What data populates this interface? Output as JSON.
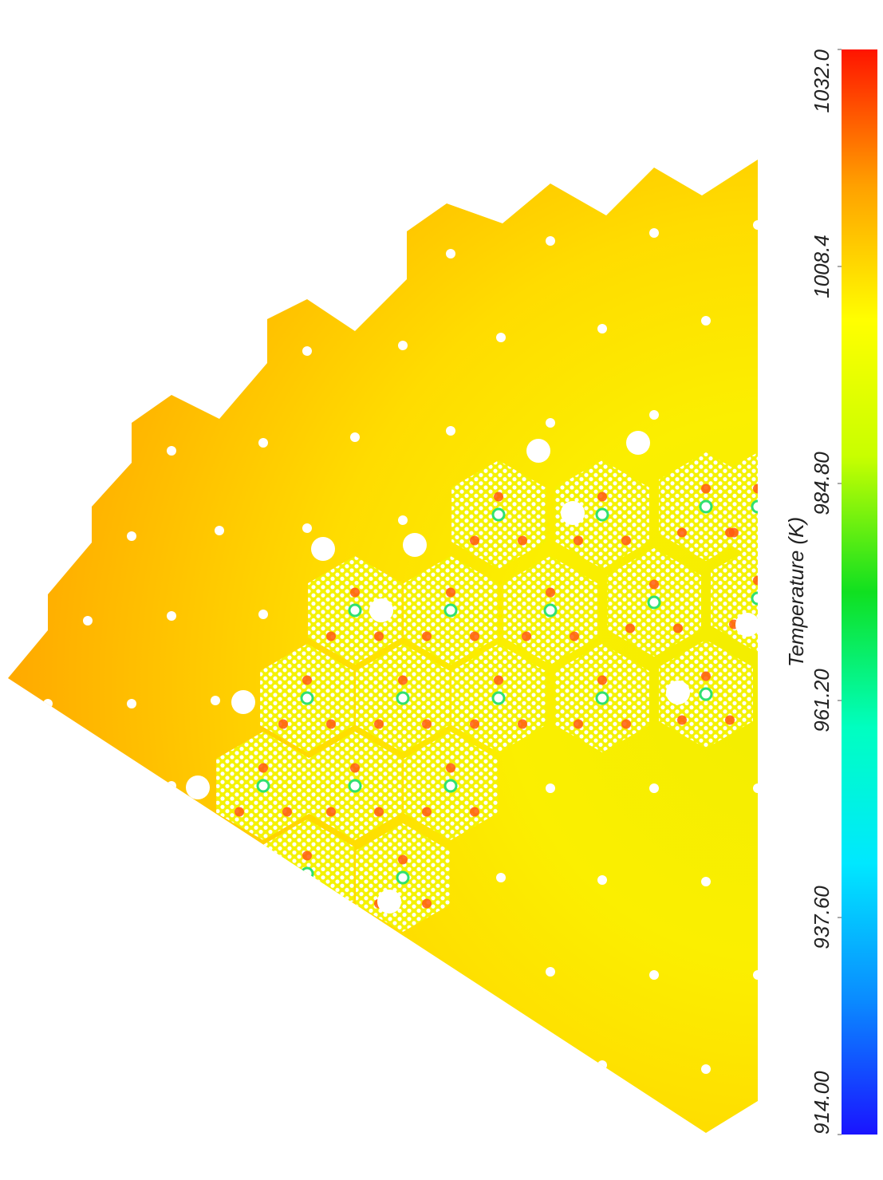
{
  "chart_data": {
    "type": "field",
    "colorbar": {
      "label": "Temperature (K)",
      "clim": [
        914,
        1032
      ],
      "cticks": [
        {
          "value": 914,
          "label": "914.00"
        },
        {
          "value": 937.6,
          "label": "937.60"
        },
        {
          "value": 961.2,
          "label": "961.20"
        },
        {
          "value": 984.8,
          "label": "984.80"
        },
        1008.4,
        {
          "value": 1032,
          "label": "1032.0"
        }
      ],
      "colormap": [
        "#1a14ff",
        "#0a8cff",
        "#00e8ff",
        "#00ffc0",
        "#10e020",
        "#c8ff00",
        "#ffff00",
        "#ffa000",
        "#ff1400"
      ]
    }
  }
}
